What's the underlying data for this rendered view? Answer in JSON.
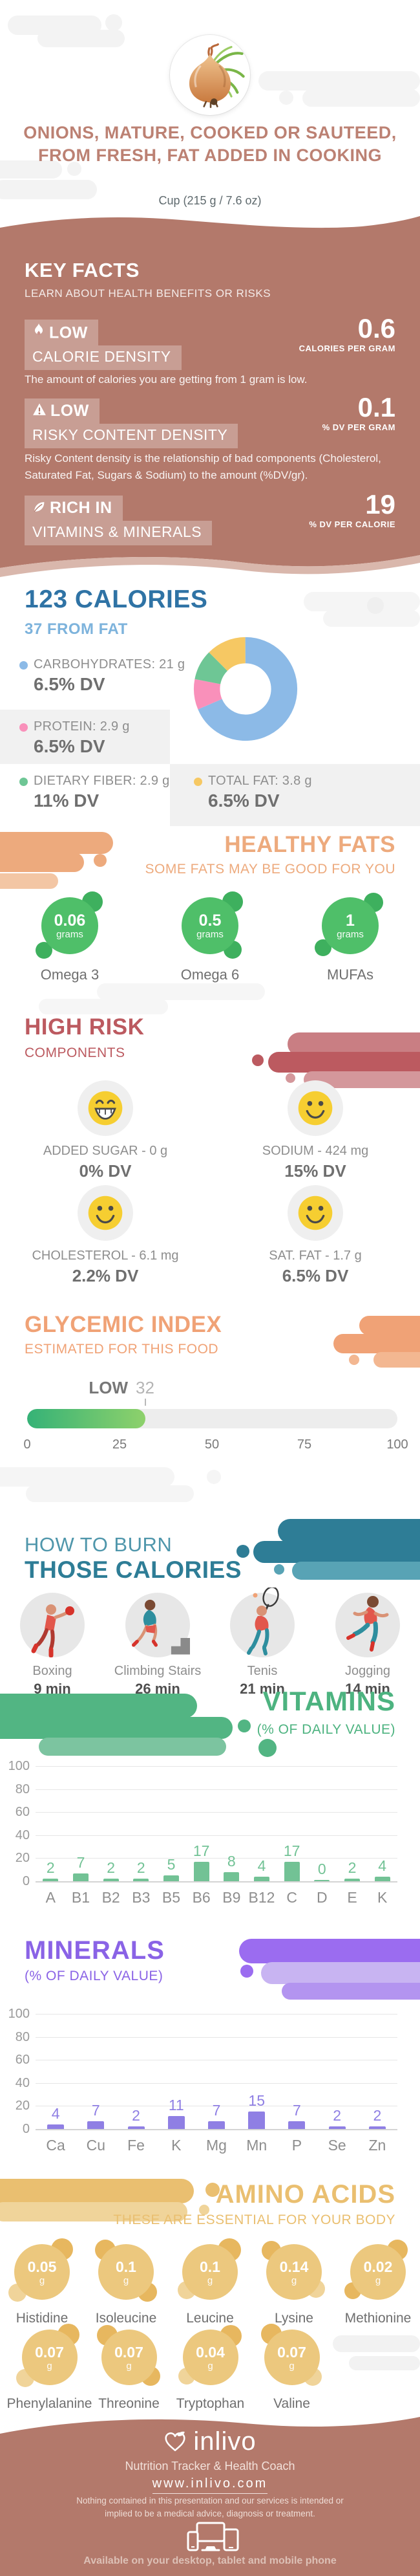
{
  "colors": {
    "mauve": "#b3796b",
    "mauve_light": "#d9b7ac",
    "title": "#bc8173",
    "blue": "#2f73a5",
    "blue_light": "#7db3dc",
    "carb_blue": "#8cbae7",
    "protein_pink": "#f990ba",
    "fiber_green": "#6ec695",
    "fat_yellow": "#f6c863",
    "orange": "#edaa7d",
    "green_circle": "#4fbf69",
    "risk_red": "#bc5a60",
    "smiley_yellow": "#f6ce31",
    "gi_orange": "#f0a276",
    "teal": "#2e7d96",
    "vitamin_green": "#4db380",
    "mineral_purple": "#8a63e6",
    "amino_gold": "#eabf70"
  },
  "header": {
    "title": "ONIONS, MATURE, COOKED OR SAUTEED, FROM FRESH, FAT ADDED IN COOKING",
    "serving": "Cup (215 g / 7.6 oz)"
  },
  "key_facts": {
    "heading": "KEY FACTS",
    "subheading": "LEARN ABOUT HEALTH BENEFITS OR RISKS",
    "facts": [
      {
        "icon": "flame-icon",
        "badge_top": "LOW",
        "badge_bottom": "CALORIE DENSITY",
        "value": "0.6",
        "unit": "CALORIES PER GRAM",
        "description": "The amount of calories you are getting from 1 gram is low."
      },
      {
        "icon": "warning-icon",
        "badge_top": "LOW",
        "badge_bottom": "RISKY CONTENT DENSITY",
        "value": "0.1",
        "unit": "% DV PER GRAM",
        "description": "Risky Content density is the relationship of bad components (Cholesterol, Saturated Fat, Sugars & Sodium) to the amount (%DV/gr)."
      },
      {
        "icon": "leaf-icon",
        "badge_top": "RICH IN",
        "badge_bottom": "VITAMINS & MINERALS",
        "value": "19",
        "unit": "% DV PER CALORIE"
      }
    ]
  },
  "calories": {
    "title": "123 CALORIES",
    "subtitle": "37 FROM FAT",
    "macros": [
      {
        "label": "CARBOHYDRATES: 21 g",
        "dv": "6.5% DV",
        "color": "#8cbae7"
      },
      {
        "label": "PROTEIN: 2.9 g",
        "dv": "6.5% DV",
        "color": "#f990ba"
      },
      {
        "label": "DIETARY FIBER: 2.9 g",
        "dv": "11% DV",
        "color": "#6ec695"
      },
      {
        "label": "TOTAL FAT: 3.8 g",
        "dv": "6.5% DV",
        "color": "#f6c863"
      }
    ]
  },
  "healthy_fats": {
    "heading": "HEALTHY FATS",
    "subheading": "SOME FATS MAY BE GOOD FOR YOU",
    "items": [
      {
        "value": "0.06",
        "unit": "grams",
        "label": "Omega 3"
      },
      {
        "value": "0.5",
        "unit": "grams",
        "label": "Omega 6"
      },
      {
        "value": "1",
        "unit": "grams",
        "label": "MUFAs"
      }
    ]
  },
  "high_risk": {
    "heading": "HIGH RISK",
    "subheading": "COMPONENTS",
    "items": [
      {
        "label": "ADDED SUGAR - 0 g",
        "dv": "0% DV",
        "face": "grin"
      },
      {
        "label": "SODIUM - 424 mg",
        "dv": "15% DV",
        "face": "smile"
      },
      {
        "label": "CHOLESTEROL - 6.1 mg",
        "dv": "2.2% DV",
        "face": "smile"
      },
      {
        "label": "SAT. FAT - 1.7 g",
        "dv": "6.5% DV",
        "face": "smile"
      }
    ]
  },
  "glycemic_index": {
    "heading": "GLYCEMIC INDEX",
    "subheading": "ESTIMATED FOR THIS FOOD",
    "level": "LOW",
    "value": 32,
    "scale": [
      "0",
      "25",
      "50",
      "75",
      "100"
    ]
  },
  "burn": {
    "heading_line1": "HOW TO BURN",
    "heading_line2": "THOSE CALORIES",
    "activities": [
      {
        "name": "Boxing",
        "duration": "9 min"
      },
      {
        "name": "Climbing Stairs",
        "duration": "26 min"
      },
      {
        "name": "Tenis",
        "duration": "21 min"
      },
      {
        "name": "Jogging",
        "duration": "14 min"
      }
    ]
  },
  "vitamins": {
    "heading": "VITAMINS",
    "subheading": "(% OF DAILY VALUE)"
  },
  "minerals": {
    "heading": "MINERALS",
    "subheading": "(% OF DAILY VALUE)"
  },
  "amino_acids": {
    "heading": "AMINO ACIDS",
    "subheading": "THESE ARE ESSENTIAL FOR YOUR BODY",
    "unit": "g",
    "items": [
      {
        "name": "Histidine",
        "value": "0.05"
      },
      {
        "name": "Isoleucine",
        "value": "0.1"
      },
      {
        "name": "Leucine",
        "value": "0.1"
      },
      {
        "name": "Lysine",
        "value": "0.14"
      },
      {
        "name": "Methionine",
        "value": "0.02"
      },
      {
        "name": "Phenylalanine",
        "value": "0.07"
      },
      {
        "name": "Threonine",
        "value": "0.07"
      },
      {
        "name": "Tryptophan",
        "value": "0.04"
      },
      {
        "name": "Valine",
        "value": "0.07"
      }
    ]
  },
  "footer": {
    "brand": "inlivo",
    "tagline": "Nutrition Tracker & Health Coach",
    "url": "www.inlivo.com",
    "disclaimer": "Nothing contained in this presentation and our services is intended or implied to be a medical advice, diagnosis or treatment.",
    "availability": "Available on your desktop, tablet and mobile phone"
  },
  "chart_data": [
    {
      "id": "macros-donut",
      "type": "pie",
      "subtype": "donut",
      "title": "123 CALORIES",
      "legend_position": "left",
      "series": [
        {
          "name": "Carbohydrates",
          "value": 21,
          "unit": "g",
          "dv_percent": 6.5,
          "color": "#8cbae7"
        },
        {
          "name": "Protein",
          "value": 2.9,
          "unit": "g",
          "dv_percent": 6.5,
          "color": "#f990ba"
        },
        {
          "name": "Dietary Fiber",
          "value": 2.9,
          "unit": "g",
          "dv_percent": 11,
          "color": "#6ec695"
        },
        {
          "name": "Total Fat",
          "value": 3.8,
          "unit": "g",
          "dv_percent": 6.5,
          "color": "#f6c863"
        }
      ]
    },
    {
      "id": "vitamins-bar",
      "type": "bar",
      "title": "VITAMINS (% OF DAILY VALUE)",
      "grid": true,
      "categories": [
        "A",
        "B1",
        "B2",
        "B3",
        "B5",
        "B6",
        "B9",
        "B12",
        "C",
        "D",
        "E",
        "K"
      ],
      "values": [
        2,
        7,
        2,
        2,
        5,
        17,
        8,
        4,
        17,
        0,
        2,
        4
      ],
      "ylim": [
        0,
        100
      ],
      "yticks": [
        0,
        20,
        40,
        60,
        80,
        100
      ],
      "bar_color": "#72c295"
    },
    {
      "id": "minerals-bar",
      "type": "bar",
      "title": "MINERALS (% OF DAILY VALUE)",
      "grid": true,
      "categories": [
        "Ca",
        "Cu",
        "Fe",
        "K",
        "Mg",
        "Mn",
        "P",
        "Se",
        "Zn"
      ],
      "values": [
        4,
        7,
        2,
        11,
        7,
        15,
        7,
        2,
        2
      ],
      "ylim": [
        0,
        100
      ],
      "yticks": [
        0,
        20,
        40,
        60,
        80,
        100
      ],
      "bar_color": "#8f7fe4"
    },
    {
      "id": "gi-gauge",
      "type": "gauge",
      "title": "GLYCEMIC INDEX",
      "value": 32,
      "label": "LOW",
      "range": [
        0,
        100
      ],
      "scale_ticks": [
        0,
        25,
        50,
        75,
        100
      ]
    }
  ]
}
